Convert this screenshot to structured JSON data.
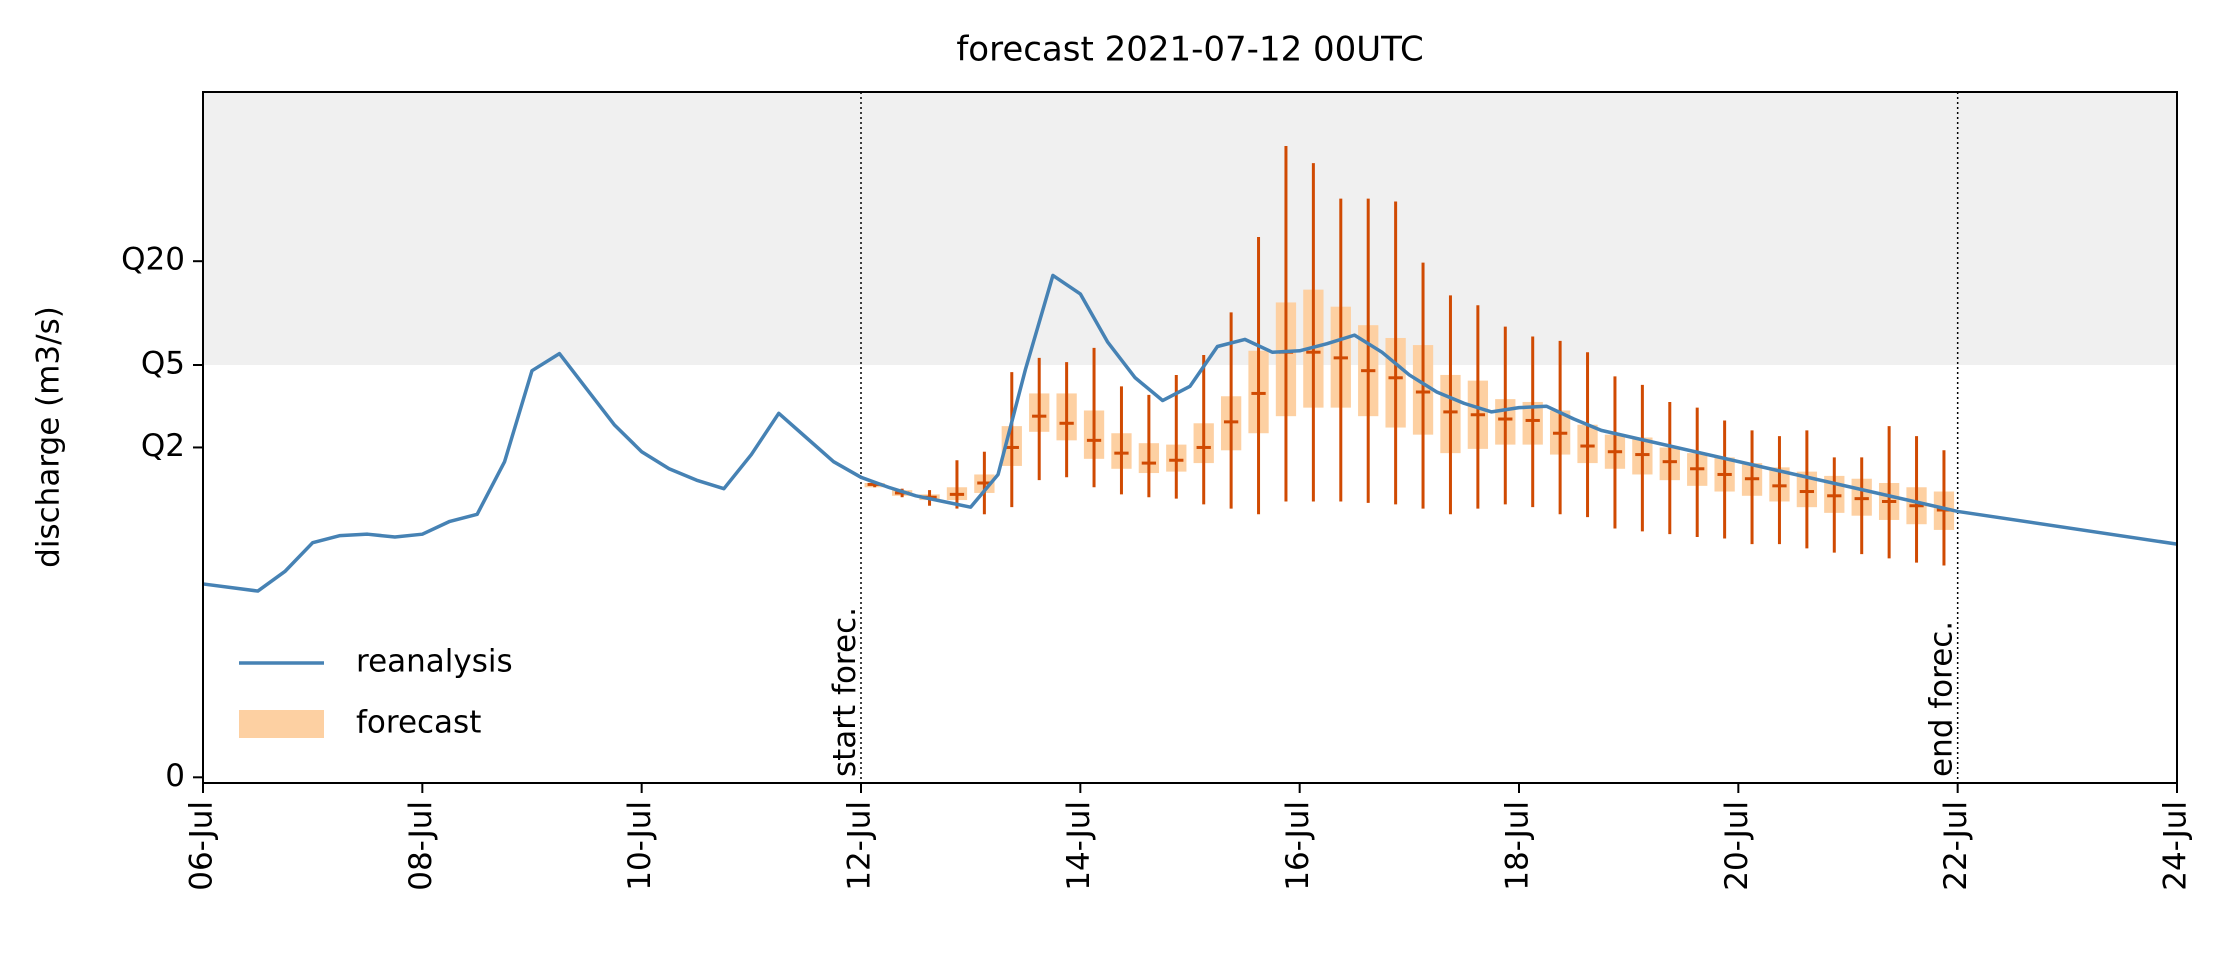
{
  "chart_data": {
    "type": "line",
    "title": "forecast 2021-07-12 00UTC",
    "ylabel": "discharge (m3/s)",
    "xlim": [
      0,
      18
    ],
    "xticks": [
      {
        "value": 0,
        "label": "06-Jul"
      },
      {
        "value": 2,
        "label": "08-Jul"
      },
      {
        "value": 4,
        "label": "10-Jul"
      },
      {
        "value": 6,
        "label": "12-Jul"
      },
      {
        "value": 8,
        "label": "14-Jul"
      },
      {
        "value": 10,
        "label": "16-Jul"
      },
      {
        "value": 12,
        "label": "18-Jul"
      },
      {
        "value": 14,
        "label": "20-Jul"
      },
      {
        "value": 16,
        "label": "22-Jul"
      },
      {
        "value": 18,
        "label": "24-Jul"
      }
    ],
    "ylim": [
      -4,
      482
    ],
    "yticks": [
      0,
      {
        "value": 232,
        "label": "Q2"
      },
      {
        "value": 290,
        "label": "Q5"
      },
      {
        "value": 363,
        "label": "Q20"
      }
    ],
    "shade_color": "#f0f0f0",
    "legend": "lower left",
    "annotations": [
      {
        "x": 6,
        "label": "start forec."
      },
      {
        "x": 16,
        "label": "end forec."
      }
    ],
    "series": [
      {
        "name": "reanalysis",
        "type": "line",
        "color": "#4682b4",
        "x": [
          0,
          0.5,
          0.75,
          1,
          1.25,
          1.5,
          1.75,
          2,
          2.25,
          2.5,
          2.75,
          3,
          3.25,
          3.5,
          3.75,
          4,
          4.25,
          4.5,
          4.75,
          5,
          5.25,
          5.5,
          5.75,
          6,
          6.25,
          6.5,
          6.75,
          7,
          7.25,
          7.5,
          7.75,
          8,
          8.25,
          8.5,
          8.75,
          9,
          9.25,
          9.5,
          9.75,
          10,
          10.25,
          10.5,
          10.75,
          11,
          11.25,
          11.5,
          11.75,
          12,
          12.25,
          12.5,
          12.75,
          16,
          18
        ],
        "values": [
          136,
          131,
          145,
          165,
          170,
          171,
          169,
          171,
          180,
          185,
          222,
          286,
          298,
          273,
          248,
          229,
          217,
          209,
          203,
          227,
          256,
          239,
          222,
          211,
          204,
          198,
          194,
          190,
          213,
          287,
          353,
          340,
          306,
          281,
          265,
          275,
          303,
          308,
          299,
          300,
          305,
          311,
          299,
          283,
          271,
          263,
          257,
          260,
          261,
          252,
          244,
          187,
          164
        ]
      },
      {
        "name": "forecast",
        "type": "box",
        "color": "#fdd0a2",
        "line_color": "#d04a02",
        "x": [
          6.125,
          6.375,
          6.625,
          6.875,
          7.125,
          7.375,
          7.625,
          7.875,
          8.125,
          8.375,
          8.625,
          8.875,
          9.125,
          9.375,
          9.625,
          9.875,
          10.125,
          10.375,
          10.625,
          10.875,
          11.125,
          11.375,
          11.625,
          11.875,
          12.125,
          12.375,
          12.625,
          12.875,
          13.125,
          13.375,
          13.625,
          13.875,
          14.125,
          14.375,
          14.625,
          14.875,
          15.125,
          15.375,
          15.625,
          15.875
        ],
        "whishi": [
          207,
          203,
          202,
          223,
          229,
          285,
          295,
          292,
          302,
          275,
          269,
          283,
          297,
          327,
          380,
          444,
          432,
          407,
          407,
          405,
          362,
          339,
          332,
          317,
          310,
          307,
          299,
          282,
          276,
          264,
          260,
          251,
          244,
          240,
          244,
          225,
          225,
          247,
          240,
          230
        ],
        "q3": [
          207,
          202,
          199,
          204,
          213,
          247,
          270,
          270,
          258,
          242,
          235,
          234,
          249,
          268,
          300,
          334,
          343,
          331,
          318,
          309,
          304,
          283,
          279,
          266,
          264,
          258,
          248,
          241,
          239,
          232,
          228,
          225,
          221,
          218,
          215,
          212,
          210,
          207,
          204,
          201
        ],
        "med": [
          206,
          200,
          197,
          199,
          207,
          232,
          254,
          249,
          237,
          228,
          221,
          223,
          232,
          250,
          270,
          299,
          299,
          295,
          286,
          281,
          271,
          257,
          255,
          252,
          251,
          242,
          233,
          229,
          227,
          222,
          217,
          213,
          210,
          205,
          201,
          198,
          196,
          194,
          191,
          188
        ],
        "q1": [
          204,
          198,
          195,
          195,
          200,
          219,
          243,
          237,
          224,
          217,
          214,
          215,
          221,
          230,
          242,
          254,
          260,
          260,
          254,
          246,
          241,
          228,
          231,
          234,
          234,
          227,
          221,
          217,
          213,
          209,
          205,
          201,
          198,
          194,
          190,
          186,
          184,
          181,
          178,
          174
        ],
        "whislo": [
          204,
          197,
          191,
          189,
          185,
          190,
          209,
          211,
          204,
          199,
          197,
          196,
          192,
          189,
          185,
          194,
          194,
          194,
          193,
          192,
          189,
          185,
          189,
          192,
          190,
          185,
          183,
          175,
          173,
          171,
          169,
          168,
          164,
          164,
          161,
          158,
          157,
          154,
          151,
          149
        ]
      }
    ]
  }
}
